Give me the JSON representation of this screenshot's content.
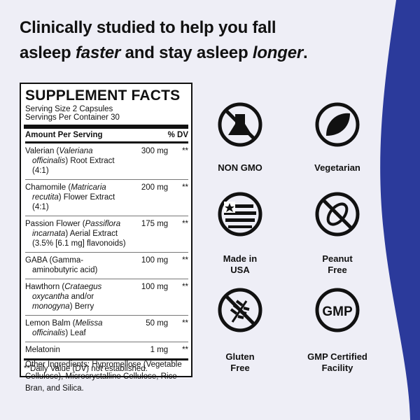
{
  "headline": {
    "line1": "Clinically studied to help you fall",
    "line2": [
      "asleep ",
      "faster",
      " and stay asleep ",
      "longer",
      "."
    ]
  },
  "facts": {
    "title": "SUPPLEMENT FACTS",
    "serving_size": "Serving Size 2 Capsules",
    "servings_per_container": "Servings Per Container 30",
    "header": {
      "amount": "Amount Per Serving",
      "dv": "% DV"
    },
    "rows": [
      {
        "name": [
          "Valerian (",
          "Valeriana officinalis",
          ") Root Extract (4:1)"
        ],
        "amount": "300 mg",
        "dv": "**"
      },
      {
        "name": [
          "Chamomile (",
          "Matricaria recutita",
          ") Flower Extract (4:1)"
        ],
        "amount": "200 mg",
        "dv": "**"
      },
      {
        "name": [
          "Passion Flower (",
          "Passiflora incarnata",
          ") Aerial Extract (3.5% [6.1 mg] flavonoids)"
        ],
        "amount": "175 mg",
        "dv": "**"
      },
      {
        "name": [
          "GABA (Gamma-aminobutyric acid)"
        ],
        "amount": "100 mg",
        "dv": "**"
      },
      {
        "name": [
          "Hawthorn (",
          "Crataegus oxycantha",
          " and/or ",
          "monogyna",
          ") Berry"
        ],
        "amount": "100 mg",
        "dv": "**"
      },
      {
        "name": [
          "Lemon Balm (",
          "Melissa officinalis",
          ") Leaf"
        ],
        "amount": "50 mg",
        "dv": "**"
      },
      {
        "name": [
          "Melatonin"
        ],
        "amount": "1 mg",
        "dv": "**"
      }
    ],
    "footnote": "**Daily Value (DV) not established."
  },
  "other_ingredients": "Other Ingredients: Hypromellose (Vegetable Cellulose), Microcrystalline Cellulose, Rice Bran, and Silica.",
  "badges": [
    {
      "label": "NON GMO"
    },
    {
      "label": "Vegetarian"
    },
    {
      "label": "Made in USA"
    },
    {
      "label": "Peanut Free"
    },
    {
      "label": "Gluten Free"
    },
    {
      "label": "GMP Certified Facility"
    },
    {
      "label": "GMP"
    }
  ]
}
